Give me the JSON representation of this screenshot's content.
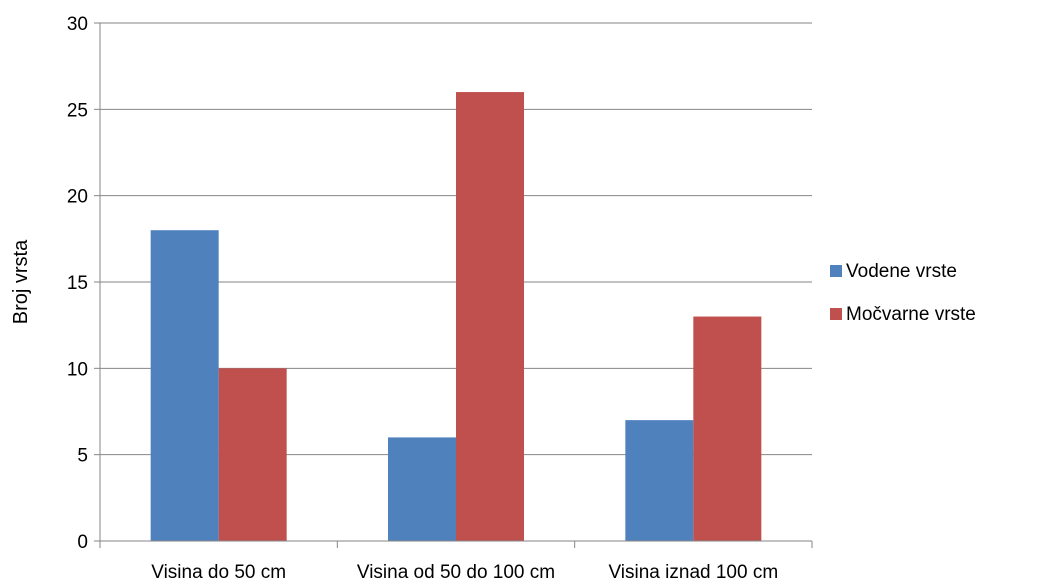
{
  "chart_data": {
    "type": "bar",
    "title": "",
    "xlabel": "",
    "ylabel": "Broj vrsta",
    "categories": [
      "Visina do 50 cm",
      "Visina od 50 do 100 cm",
      "Visina iznad 100 cm"
    ],
    "series": [
      {
        "name": "Vodene vrste",
        "color": "#4f81bd",
        "values": [
          18,
          6,
          7
        ]
      },
      {
        "name": "Močvarne vrste",
        "color": "#c0504d",
        "values": [
          10,
          26,
          13
        ]
      }
    ],
    "ylim": [
      0,
      30
    ],
    "yticks": [
      "0",
      "5",
      "10",
      "15",
      "20",
      "25",
      "30"
    ],
    "grid": true,
    "legend_position": "right"
  }
}
